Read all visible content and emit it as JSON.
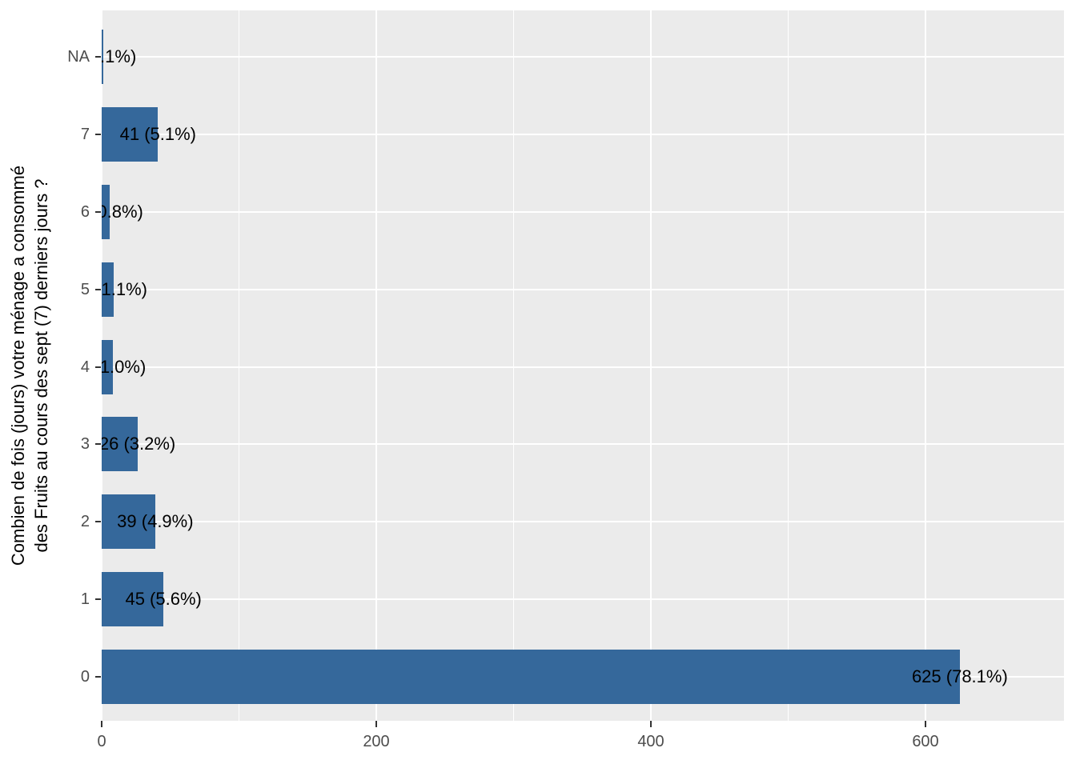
{
  "chart_data": {
    "type": "bar",
    "orientation": "horizontal",
    "title": "",
    "xlabel": "",
    "ylabel_lines": [
      "Combien de fois (jours) votre ménage a consommé",
      "des Fruits au cours des sept (7) derniers jours ?"
    ],
    "categories": [
      "NA",
      "7",
      "6",
      "5",
      "4",
      "3",
      "2",
      "1",
      "0"
    ],
    "values": [
      1,
      41,
      6,
      9,
      8,
      26,
      39,
      45,
      625
    ],
    "percent_labels": [
      "1 (0.1%)",
      "41 (5.1%)",
      "6 (0.8%)",
      "9 (1.1%)",
      "8 (1.0%)",
      "26 (3.2%)",
      "39 (4.9%)",
      "45 (5.6%)",
      "625 (78.1%)"
    ],
    "x_ticks": [
      0,
      200,
      400,
      600
    ],
    "x_minor_ticks": [
      100,
      300,
      500
    ],
    "xlim": [
      0,
      700
    ],
    "grid": true,
    "legend": "none",
    "colors": {
      "bar_fill": "#35689b",
      "panel_background": "#ebebeb",
      "gridline": "#ffffff",
      "tick_mark": "#333333",
      "tick_label": "#4d4d4d",
      "bar_label": "#000000",
      "axis_title": "#000000"
    }
  }
}
